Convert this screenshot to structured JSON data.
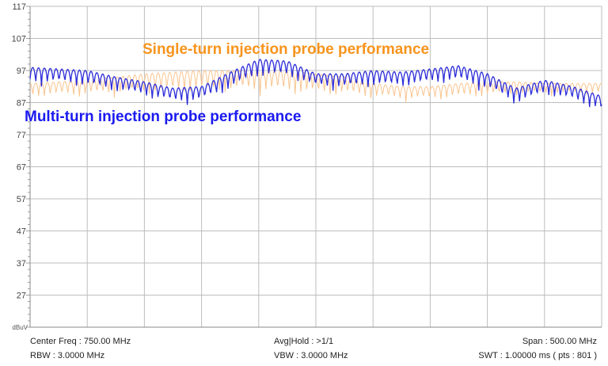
{
  "chart_data": {
    "type": "line",
    "ylabel": "dBuV",
    "ylim": [
      17,
      117
    ],
    "xlim_mhz": [
      500,
      1000
    ],
    "yticks": [
      "117",
      "107",
      "97",
      "87",
      "77",
      "67",
      "57",
      "47",
      "37",
      "27"
    ],
    "grid": true,
    "x_divisions": 10,
    "annotations": [
      {
        "text": "Single-turn injection probe performance",
        "color": "#F7941D"
      },
      {
        "text": "Multi-turn injection probe performance",
        "color": "#1A1AF0"
      }
    ],
    "x_mhz": [
      500,
      525,
      550,
      575,
      600,
      625,
      650,
      675,
      700,
      725,
      750,
      775,
      800,
      825,
      850,
      875,
      900,
      925,
      950,
      975,
      1000
    ],
    "series": [
      {
        "name": "Single-turn injection probe performance",
        "color": "#F9C48E",
        "upper": [
          93,
          93.5,
          94,
          95,
          96,
          96.5,
          97,
          97,
          97,
          97,
          96,
          95,
          93,
          92,
          92,
          93,
          93.5,
          93.5,
          93,
          93,
          93
        ],
        "lower": [
          88,
          88,
          88,
          88.5,
          88.5,
          89,
          89,
          89,
          89,
          88.5,
          88,
          88,
          87.5,
          87,
          87,
          87.5,
          88,
          88.5,
          89,
          89,
          89
        ]
      },
      {
        "name": "Multi-turn injection probe performance",
        "color": "#2B2BD9",
        "upper": [
          98,
          97.5,
          97,
          95,
          93.5,
          91.5,
          92,
          96.5,
          100.5,
          100,
          96,
          96,
          97,
          96.5,
          97.5,
          98.5,
          96,
          91.5,
          94,
          92,
          89
        ],
        "lower": [
          92,
          92,
          91,
          89.5,
          88,
          86,
          86.5,
          90,
          94,
          94,
          91,
          90.5,
          91,
          91,
          92,
          92.5,
          90,
          85.5,
          88.5,
          86.5,
          83.5
        ]
      }
    ]
  },
  "footer": {
    "center_freq": "Center Freq : 750.00 MHz",
    "rbw": "RBW : 3.0000 MHz",
    "avg_hold": "Avg|Hold : >1/1",
    "vbw": "VBW : 3.0000 MHz",
    "span": "Span : 500.00 MHz",
    "swt": "SWT : 1.00000 ms ( pts : 801 )"
  }
}
